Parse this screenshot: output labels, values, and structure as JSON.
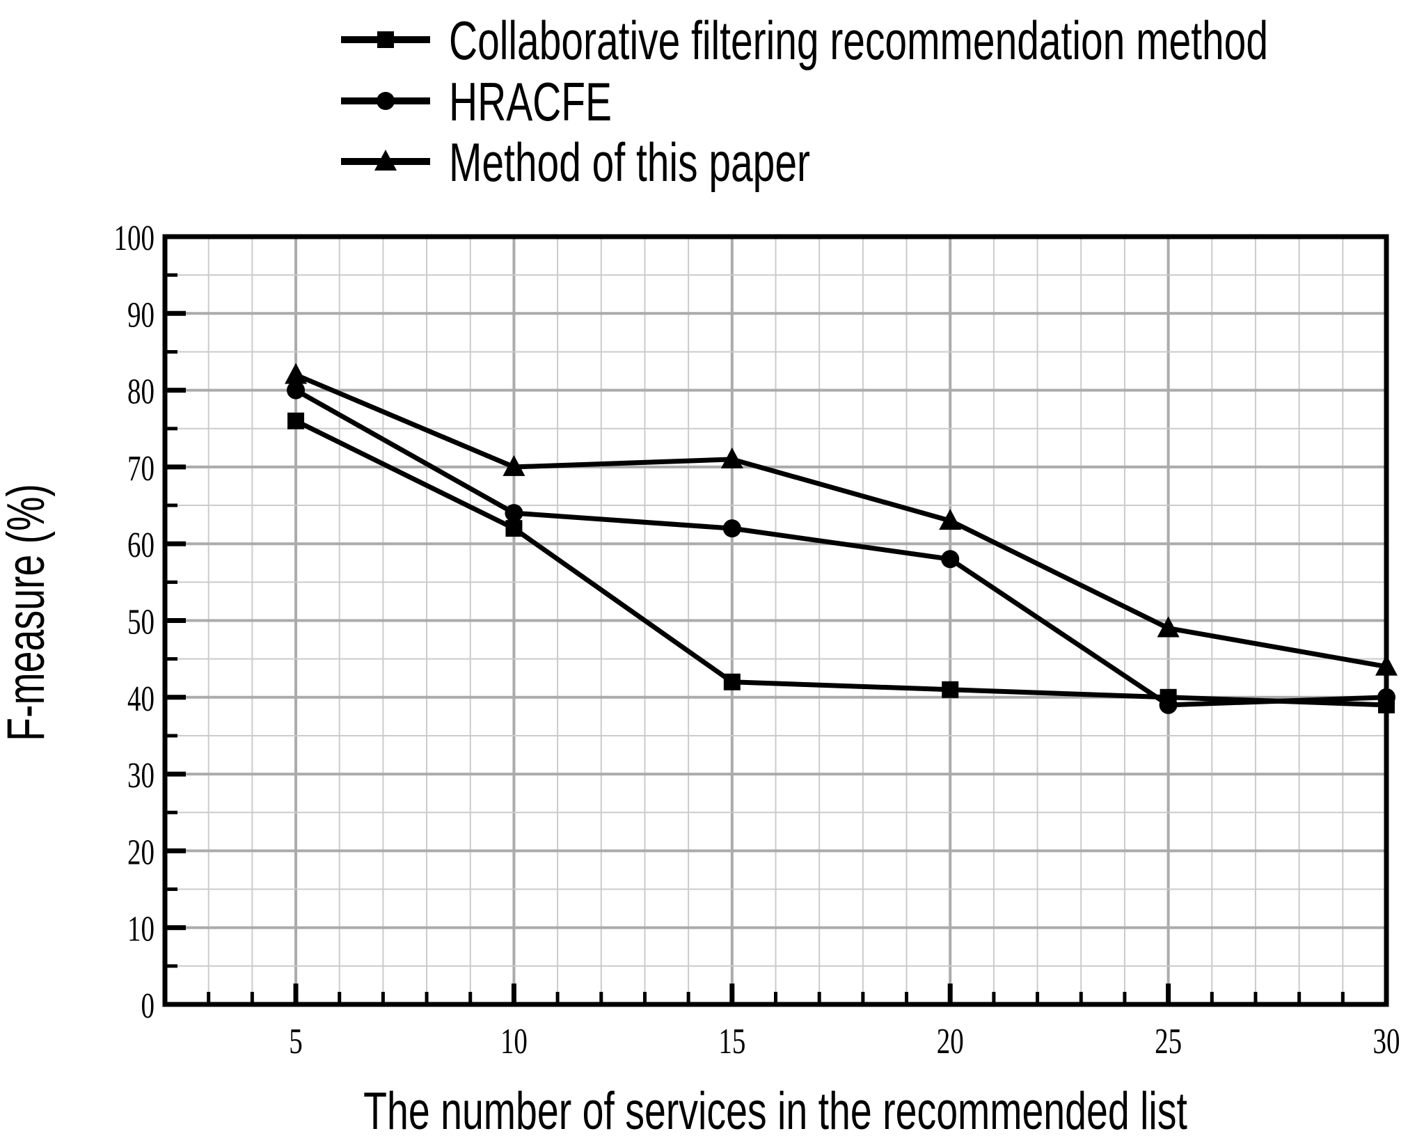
{
  "chart_data": {
    "type": "line",
    "title": "",
    "xlabel": "The number of services in the recommended list",
    "ylabel": "F-measure (%)",
    "x": [
      5,
      10,
      15,
      20,
      25,
      30
    ],
    "xlim": [
      2,
      30
    ],
    "ylim": [
      0,
      100
    ],
    "x_ticks": [
      5,
      10,
      15,
      20,
      25,
      30
    ],
    "y_ticks": [
      0,
      10,
      20,
      30,
      40,
      50,
      60,
      70,
      80,
      90,
      100
    ],
    "x_minor_step": 1,
    "y_minor_step": 5,
    "grid": true,
    "legend_position": "top-left",
    "series": [
      {
        "name": "Collaborative filtering recommendation method",
        "marker": "square",
        "values": [
          76,
          62,
          42,
          41,
          40,
          39
        ]
      },
      {
        "name": "HRACFE",
        "marker": "circle",
        "values": [
          80,
          64,
          62,
          58,
          39,
          40
        ]
      },
      {
        "name": "Method of this paper",
        "marker": "triangle",
        "values": [
          82,
          70,
          71,
          63,
          49,
          44
        ]
      }
    ],
    "colors": {
      "series": "#000000",
      "grid_minor": "#cbcbcb",
      "grid_major": "#ababab",
      "frame": "#000000",
      "background": "#ffffff"
    }
  }
}
